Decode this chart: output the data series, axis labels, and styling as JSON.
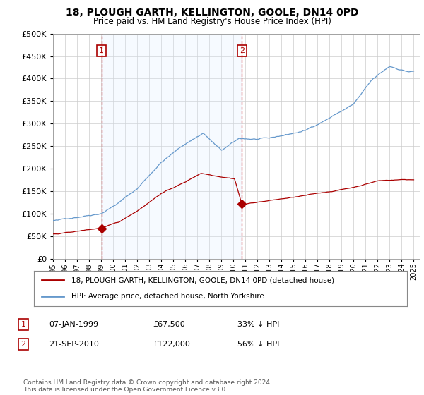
{
  "title": "18, PLOUGH GARTH, KELLINGTON, GOOLE, DN14 0PD",
  "subtitle": "Price paid vs. HM Land Registry's House Price Index (HPI)",
  "legend_line1": "18, PLOUGH GARTH, KELLINGTON, GOOLE, DN14 0PD (detached house)",
  "legend_line2": "HPI: Average price, detached house, North Yorkshire",
  "footnote": "Contains HM Land Registry data © Crown copyright and database right 2024.\nThis data is licensed under the Open Government Licence v3.0.",
  "transaction1_date": "07-JAN-1999",
  "transaction1_price": "£67,500",
  "transaction1_hpi": "33% ↓ HPI",
  "transaction1_year": 1999.03,
  "transaction1_value": 67500,
  "transaction2_date": "21-SEP-2010",
  "transaction2_price": "£122,000",
  "transaction2_hpi": "56% ↓ HPI",
  "transaction2_year": 2010.72,
  "transaction2_value": 122000,
  "red_line_color": "#aa0000",
  "blue_line_color": "#6699cc",
  "shade_color": "#ddeeff",
  "vline_color": "#cc0000",
  "ylim": [
    0,
    500000
  ],
  "yticks": [
    0,
    50000,
    100000,
    150000,
    200000,
    250000,
    300000,
    350000,
    400000,
    450000,
    500000
  ],
  "xmin": 1995.0,
  "xmax": 2025.5,
  "background_color": "#ffffff",
  "plot_bg_color": "#ffffff",
  "grid_color": "#cccccc"
}
